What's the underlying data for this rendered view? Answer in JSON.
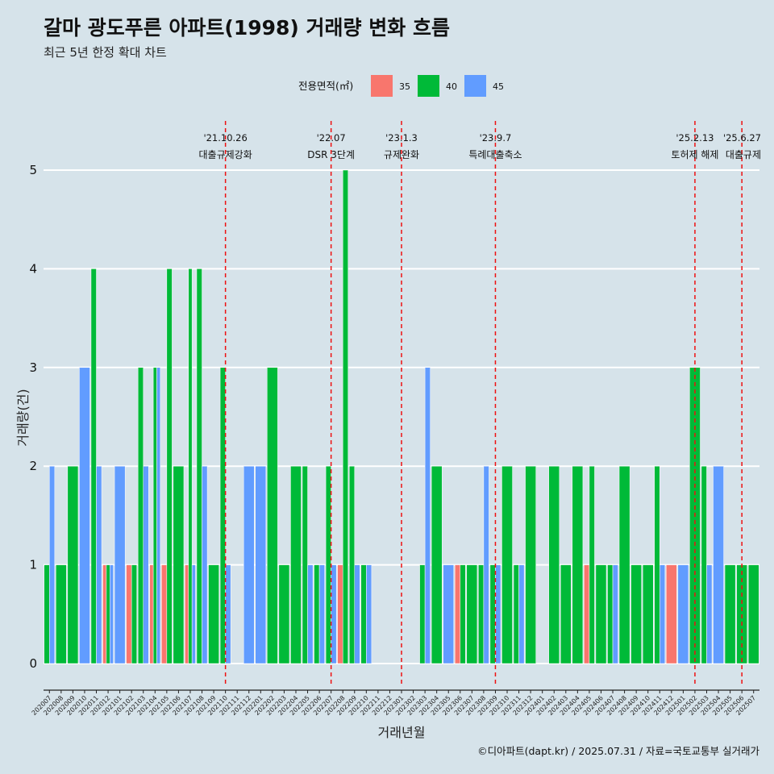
{
  "title": "갈마 광도푸른 아파트(1998) 거래량 변화 흐름",
  "subtitle": "최근 5년 한정 확대 차트",
  "caption": "©디아파트(dapt.kr) / 2025.07.31 / 자료=국토교통부 실거래가",
  "colors": {
    "background": "#d6e3ea",
    "grid": "#ffffff",
    "event_line": "#ee1111",
    "area_35": "#f8766d",
    "area_40": "#00ba38",
    "area_45": "#619cff"
  },
  "chart_data": {
    "type": "bar",
    "stacking": "dodge",
    "xlabel": "거래년월",
    "ylabel": "거래량(건)",
    "ylim": [
      0,
      5
    ],
    "yticks": [
      0,
      1,
      2,
      3,
      4,
      5
    ],
    "grid": true,
    "legend": {
      "title": "전용면적(㎡)",
      "position": "top",
      "entries": [
        "35",
        "40",
        "45"
      ]
    },
    "categories": [
      "202007",
      "202008",
      "202009",
      "202010",
      "202011",
      "202012",
      "202101",
      "202102",
      "202103",
      "202104",
      "202105",
      "202106",
      "202107",
      "202108",
      "202109",
      "202110",
      "202111",
      "202112",
      "202201",
      "202202",
      "202203",
      "202204",
      "202205",
      "202206",
      "202207",
      "202208",
      "202209",
      "202210",
      "202211",
      "202212",
      "202301",
      "202302",
      "202303",
      "202304",
      "202305",
      "202306",
      "202307",
      "202308",
      "202309",
      "202310",
      "202311",
      "202312",
      "202401",
      "202402",
      "202403",
      "202404",
      "202405",
      "202406",
      "202407",
      "202408",
      "202409",
      "202410",
      "202411",
      "202412",
      "202501",
      "202502",
      "202503",
      "202504",
      "202505",
      "202506",
      "202507"
    ],
    "series": [
      {
        "name": "35",
        "values": [
          0,
          0,
          0,
          0,
          0,
          1,
          0,
          1,
          0,
          1,
          1,
          0,
          1,
          0,
          0,
          0,
          0,
          0,
          0,
          0,
          0,
          0,
          0,
          0,
          0,
          1,
          0,
          0,
          0,
          0,
          0,
          0,
          0,
          0,
          0,
          1,
          0,
          0,
          0,
          0,
          0,
          0,
          0,
          0,
          0,
          0,
          1,
          0,
          0,
          0,
          0,
          0,
          0,
          1,
          0,
          0,
          0,
          0,
          0,
          0,
          0
        ]
      },
      {
        "name": "40",
        "values": [
          1,
          1,
          2,
          0,
          4,
          1,
          0,
          1,
          3,
          3,
          4,
          2,
          4,
          4,
          1,
          3,
          0,
          0,
          0,
          3,
          1,
          2,
          2,
          1,
          2,
          5,
          2,
          1,
          0,
          0,
          0,
          0,
          1,
          2,
          0,
          1,
          1,
          1,
          1,
          2,
          1,
          2,
          0,
          2,
          1,
          2,
          2,
          1,
          1,
          2,
          1,
          1,
          2,
          0,
          0,
          3,
          2,
          0,
          1,
          1,
          1
        ]
      },
      {
        "name": "45",
        "values": [
          2,
          0,
          0,
          3,
          2,
          1,
          2,
          0,
          2,
          3,
          0,
          0,
          1,
          2,
          0,
          1,
          0,
          2,
          2,
          0,
          0,
          0,
          1,
          1,
          1,
          0,
          1,
          1,
          0,
          0,
          0,
          0,
          3,
          0,
          1,
          0,
          0,
          2,
          1,
          0,
          1,
          0,
          0,
          0,
          0,
          0,
          0,
          0,
          1,
          0,
          0,
          0,
          1,
          0,
          1,
          0,
          1,
          2,
          0,
          0,
          0
        ]
      }
    ],
    "events": [
      {
        "date": "'21.10.26",
        "label": "대출규제강화",
        "x": "202110"
      },
      {
        "date": "'22.07",
        "label": "DSR 3단계",
        "x": "202207"
      },
      {
        "date": "'23.1.3",
        "label": "규제완화",
        "x": "202301"
      },
      {
        "date": "'23.9.7",
        "label": "특례대출축소",
        "x": "202309"
      },
      {
        "date": "'25.2.13",
        "label": "토허제 해제",
        "x": "202502"
      },
      {
        "date": "'25.6.27",
        "label": "대출규제",
        "x": "202506"
      }
    ]
  }
}
